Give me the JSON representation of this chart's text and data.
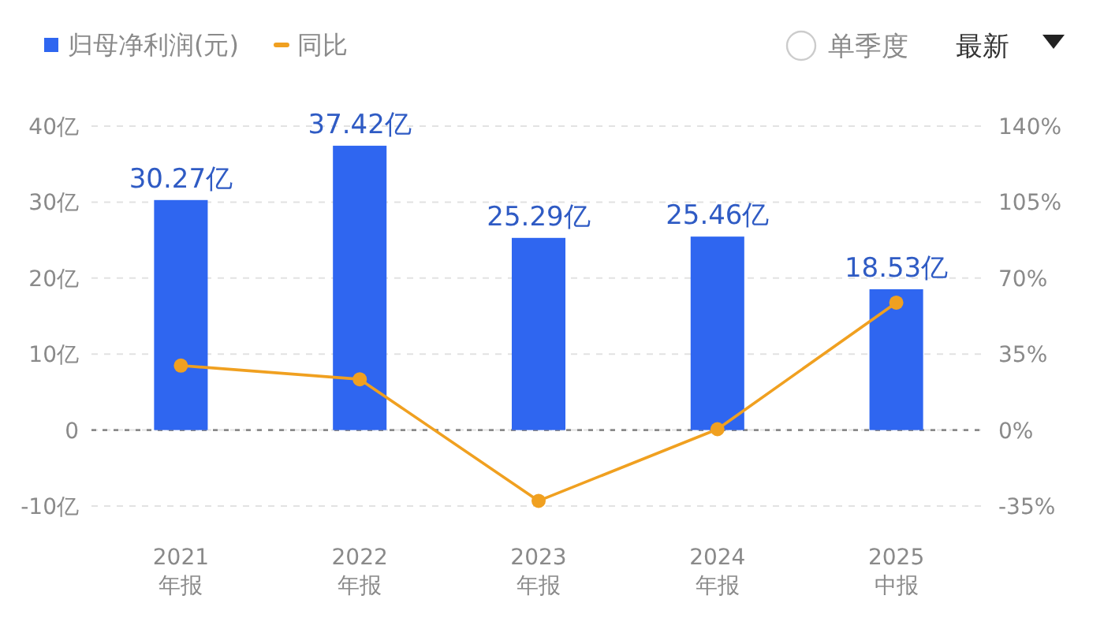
{
  "chart_data": {
    "type": "bar",
    "categories": [
      "2021\n年报",
      "2022\n年报",
      "2023\n年报",
      "2024\n年报",
      "2025\n中报"
    ],
    "series": [
      {
        "name": "归母净利润(元)",
        "color": "#2f66f0",
        "values": [
          30.27,
          37.42,
          25.29,
          25.46,
          18.53
        ],
        "value_labels": [
          "30.27亿",
          "37.42亿",
          "25.29亿",
          "25.46亿",
          "18.53亿"
        ]
      },
      {
        "name": "同比",
        "type": "line",
        "axis": "y2",
        "color": "#f0a020",
        "values": [
          29.7,
          23.4,
          -32.6,
          0.4,
          58.7
        ]
      }
    ],
    "ylim": [
      -10,
      40
    ],
    "yticks": [
      {
        "value": -10,
        "label": "-10亿"
      },
      0,
      {
        "value": 10,
        "label": "10亿"
      },
      {
        "value": 20,
        "label": "20亿"
      },
      {
        "value": 30,
        "label": "30亿"
      },
      {
        "value": 40,
        "label": "40亿"
      }
    ],
    "y2lim": [
      -35,
      140
    ],
    "y2ticks": [
      {
        "value": -35,
        "label": "-35%"
      },
      {
        "value": 0,
        "label": "0%"
      },
      {
        "value": 35,
        "label": "35%"
      },
      {
        "value": 70,
        "label": "70%"
      },
      {
        "value": 105,
        "label": "105%"
      },
      {
        "value": 140,
        "label": "140%"
      }
    ],
    "ref_lines": [
      {
        "axis": "y",
        "value": 0,
        "color": "#8a8a8a",
        "line_style": "dashed"
      }
    ],
    "grid": "y",
    "legend": "top left",
    "marker": "circle",
    "annotations": [
      "单季度",
      "最新"
    ]
  }
}
